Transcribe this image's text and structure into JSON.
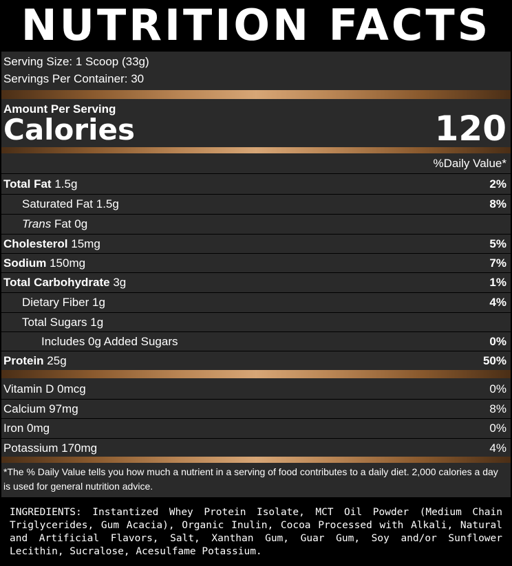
{
  "title": "NUTRITION FACTS",
  "serving_size": "Serving Size: 1 Scoop (33g)",
  "servings_per_container": "Servings Per Container: 30",
  "amount_per_serving": "Amount Per Serving",
  "calories_label": "Calories",
  "calories_value": "120",
  "daily_value_header": "%Daily Value*",
  "nutrients": [
    {
      "name": "Total Fat",
      "amount": "1.5g",
      "dv": "2%"
    },
    {
      "name": "Saturated Fat",
      "amount": "1.5g",
      "dv": "8%"
    },
    {
      "name_italic": "Trans",
      "name": "Fat",
      "amount": "0g",
      "dv": ""
    },
    {
      "name": "Cholesterol",
      "amount": "15mg",
      "dv": "5%"
    },
    {
      "name": "Sodium",
      "amount": "150mg",
      "dv": "7%"
    },
    {
      "name": "Total Carbohydrate",
      "amount": "3g",
      "dv": "1%"
    },
    {
      "name": "Dietary Fiber",
      "amount": "1g",
      "dv": "4%"
    },
    {
      "name": "Total Sugars",
      "amount": "1g",
      "dv": ""
    },
    {
      "name": "Includes 0g Added Sugars",
      "amount": "",
      "dv": "0%"
    },
    {
      "name": "Protein",
      "amount": "25g",
      "dv": "50%"
    }
  ],
  "vitamins": [
    {
      "name": "Vitamin D",
      "amount": "0mcg",
      "dv": "0%"
    },
    {
      "name": "Calcium",
      "amount": "97mg",
      "dv": "8%"
    },
    {
      "name": "Iron",
      "amount": "0mg",
      "dv": "0%"
    },
    {
      "name": "Potassium",
      "amount": "170mg",
      "dv": "4%"
    }
  ],
  "footnote": "*The % Daily Value tells you how much a nutrient in a serving of food contributes to a daily diet. 2,000 calories a day is used for general nutrition advice.",
  "ingredients": "INGREDIENTS: Instantized Whey Protein Isolate, MCT Oil Powder (Medium Chain Triglycerides, Gum Acacia), Organic Inulin, Cocoa Processed with Alkali, Natural and Artificial Flavors, Salt, Xanthan Gum, Guar Gum, Soy and/or Sunflower Lecithin, Sucralose, Acesulfame Potassium."
}
